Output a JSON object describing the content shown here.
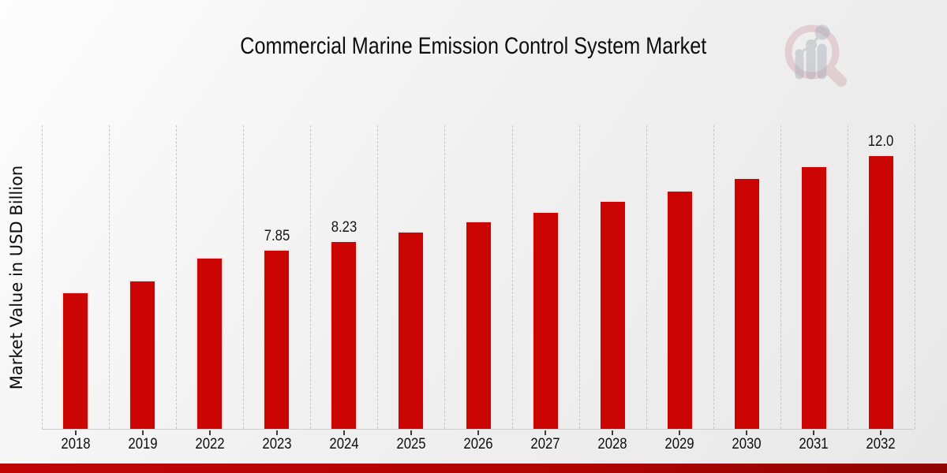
{
  "header": {
    "title": "Commercial Marine Emission Control System Market"
  },
  "watermark": {
    "icon": "magnifier-bar-chart-logo",
    "ring_color": "#c9909a",
    "ring_opacity": 0.32,
    "bars_color": "#a8acb6",
    "bars_opacity": 0.45
  },
  "chart_data": {
    "type": "bar",
    "title": "Commercial Marine Emission Control System Market",
    "xlabel": "",
    "ylabel": "Market Value in USD Billion",
    "categories": [
      "2018",
      "2019",
      "2022",
      "2023",
      "2024",
      "2025",
      "2026",
      "2027",
      "2028",
      "2029",
      "2030",
      "2031",
      "2032"
    ],
    "values": [
      6.0,
      6.5,
      7.5,
      7.85,
      8.23,
      8.65,
      9.1,
      9.5,
      10.0,
      10.45,
      11.0,
      11.5,
      12.0
    ],
    "data_labels": {
      "2023": "7.85",
      "2024": "8.23",
      "2032": "12.0"
    },
    "bar_color": "#cb0404",
    "ylim": [
      0,
      13.3
    ],
    "grid": "vertical-dashed",
    "legend_position": "none"
  },
  "footer": {
    "accent_color_left": "#c00505",
    "accent_color_mid": "#b00404",
    "accent_color_right": "#8f0303"
  }
}
